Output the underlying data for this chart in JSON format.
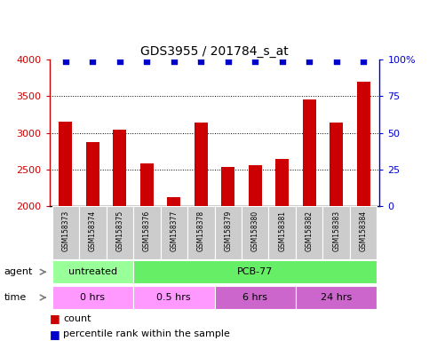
{
  "title": "GDS3955 / 201784_s_at",
  "samples": [
    "GSM158373",
    "GSM158374",
    "GSM158375",
    "GSM158376",
    "GSM158377",
    "GSM158378",
    "GSM158379",
    "GSM158380",
    "GSM158381",
    "GSM158382",
    "GSM158383",
    "GSM158384"
  ],
  "counts": [
    3150,
    2870,
    3040,
    2590,
    2130,
    3140,
    2540,
    2560,
    2640,
    3460,
    3140,
    3700
  ],
  "percentile_ranks": [
    99,
    99,
    99,
    99,
    99,
    99,
    99,
    99,
    99,
    99,
    99,
    99
  ],
  "ylim_left": [
    2000,
    4000
  ],
  "ylim_right": [
    0,
    100
  ],
  "yticks_left": [
    2000,
    2500,
    3000,
    3500,
    4000
  ],
  "yticks_right": [
    0,
    25,
    50,
    75,
    100
  ],
  "bar_color": "#cc0000",
  "dot_color": "#0000cc",
  "agent_labels": [
    {
      "text": "untreated",
      "start": 0,
      "end": 3,
      "color": "#99ff99"
    },
    {
      "text": "PCB-77",
      "start": 3,
      "end": 12,
      "color": "#66ee66"
    }
  ],
  "time_labels": [
    {
      "text": "0 hrs",
      "start": 0,
      "end": 3,
      "color": "#ff99ff"
    },
    {
      "text": "0.5 hrs",
      "start": 3,
      "end": 6,
      "color": "#ff99ff"
    },
    {
      "text": "6 hrs",
      "start": 6,
      "end": 9,
      "color": "#cc66cc"
    },
    {
      "text": "24 hrs",
      "start": 9,
      "end": 12,
      "color": "#cc66cc"
    }
  ],
  "tick_bg_color": "#cccccc",
  "legend_count_color": "#cc0000",
  "legend_dot_color": "#0000cc"
}
